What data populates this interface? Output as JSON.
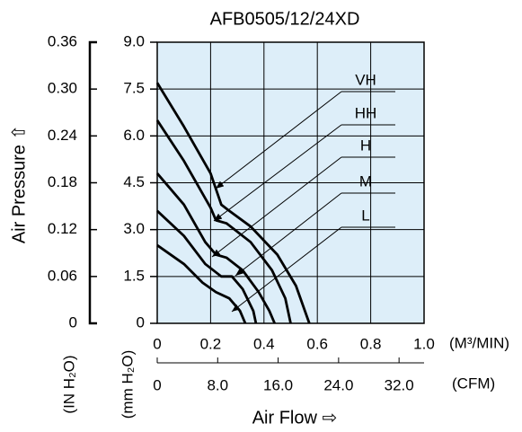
{
  "chart_data": {
    "type": "line",
    "title": "AFB0505/12/24XD",
    "x_label": "Air Flow ⇨",
    "x_unit": "(M³/MIN)",
    "x2_unit": "(CFM)",
    "y_label": "Air Pressure ⇧",
    "y_unit": "(mm H₂O)",
    "y2_unit": "(IN H₂O)",
    "xlim": [
      0,
      1.0
    ],
    "xticks": [
      0,
      0.2,
      0.4,
      0.6,
      0.8,
      {
        "value": 1.0,
        "label": "1.0"
      }
    ],
    "x2lim": [
      0,
      35.31
    ],
    "x2ticks": [
      0,
      {
        "value": 8,
        "label": "8.0"
      },
      {
        "value": 16,
        "label": "16.0"
      },
      {
        "value": 24,
        "label": "24.0"
      },
      {
        "value": 32,
        "label": "32.0"
      }
    ],
    "ylim": [
      0,
      9
    ],
    "yticks": [
      0,
      1.5,
      {
        "value": 3,
        "label": "3.0"
      },
      4.5,
      {
        "value": 6,
        "label": "6.0"
      },
      7.5,
      {
        "value": 9,
        "label": "9.0"
      }
    ],
    "y2lim": [
      0,
      0.36
    ],
    "y2ticks": [
      0,
      0.06,
      0.12,
      0.18,
      0.24,
      {
        "value": 0.3,
        "label": "0.30"
      },
      0.36
    ],
    "grid": true,
    "background": "#ddeef9",
    "series": [
      {
        "name": "VH",
        "color": "#000000",
        "x": [
          0,
          0.1,
          0.2,
          0.24,
          0.27,
          0.35,
          0.45,
          0.52,
          0.57
        ],
        "values": [
          7.7,
          6.3,
          4.8,
          3.8,
          3.6,
          3.1,
          2.2,
          1.2,
          0
        ]
      },
      {
        "name": "HH",
        "color": "#000000",
        "x": [
          0,
          0.1,
          0.2,
          0.22,
          0.26,
          0.35,
          0.43,
          0.48,
          0.5
        ],
        "values": [
          6.5,
          5.2,
          3.7,
          3.3,
          3.2,
          2.6,
          1.7,
          0.8,
          0
        ]
      },
      {
        "name": "H",
        "color": "#000000",
        "x": [
          0,
          0.1,
          0.18,
          0.22,
          0.26,
          0.32,
          0.38,
          0.42,
          0.44
        ],
        "values": [
          4.8,
          3.8,
          2.6,
          2.2,
          2.1,
          1.7,
          1.0,
          0.4,
          0
        ]
      },
      {
        "name": "M",
        "color": "#000000",
        "x": [
          0,
          0.1,
          0.18,
          0.24,
          0.28,
          0.32,
          0.36,
          0.37
        ],
        "values": [
          3.6,
          2.8,
          1.9,
          1.5,
          1.5,
          1.1,
          0.4,
          0
        ]
      },
      {
        "name": "L",
        "color": "#000000",
        "x": [
          0,
          0.1,
          0.17,
          0.22,
          0.27,
          0.31,
          0.33
        ],
        "values": [
          2.5,
          1.9,
          1.3,
          1.0,
          0.8,
          0.4,
          0
        ]
      }
    ]
  }
}
